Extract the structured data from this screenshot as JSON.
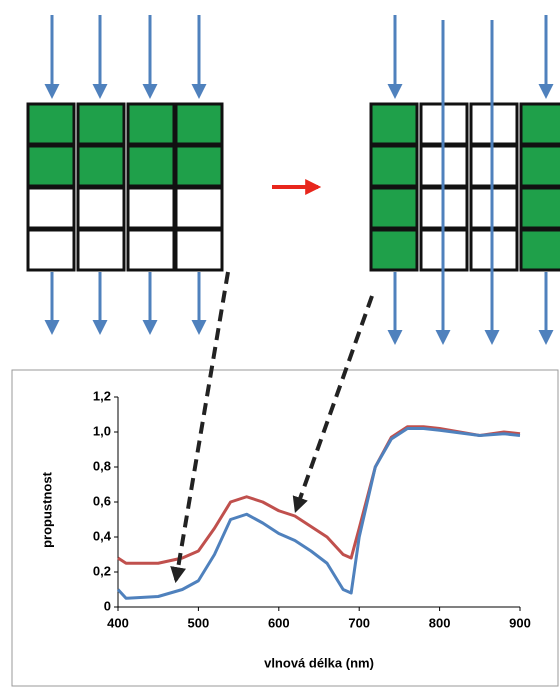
{
  "chart_data": {
    "type": "line",
    "xlabel": "vlnová délka (nm)",
    "ylabel": "propustnost",
    "x": [
      400,
      410,
      450,
      480,
      500,
      520,
      540,
      560,
      580,
      600,
      620,
      640,
      660,
      680,
      690,
      700,
      720,
      740,
      760,
      780,
      800,
      850,
      880,
      900
    ],
    "series": [
      {
        "color": "#c0504d",
        "values": [
          0.28,
          0.25,
          0.25,
          0.28,
          0.32,
          0.45,
          0.6,
          0.63,
          0.6,
          0.55,
          0.52,
          0.46,
          0.4,
          0.3,
          0.28,
          0.45,
          0.8,
          0.97,
          1.03,
          1.03,
          1.02,
          0.98,
          1.0,
          0.99
        ]
      },
      {
        "color": "#4f81bd",
        "values": [
          0.1,
          0.05,
          0.06,
          0.1,
          0.15,
          0.3,
          0.5,
          0.53,
          0.48,
          0.42,
          0.38,
          0.32,
          0.25,
          0.1,
          0.08,
          0.4,
          0.8,
          0.96,
          1.02,
          1.02,
          1.01,
          0.98,
          0.99,
          0.98
        ]
      }
    ],
    "xlim": [
      400,
      900
    ],
    "xticks": [
      400,
      500,
      600,
      700,
      800,
      900
    ],
    "ylim": [
      0,
      1.2
    ],
    "yticks": [
      0,
      {
        "value": 0.2,
        "label": "0,2"
      },
      {
        "value": 0.4,
        "label": "0,4"
      },
      {
        "value": 0.6,
        "label": "0,6"
      },
      {
        "value": 0.8,
        "label": "0,8"
      },
      {
        "value": 1.0,
        "label": "1,0"
      },
      {
        "value": 1.2,
        "label": "1,2"
      }
    ]
  }
}
